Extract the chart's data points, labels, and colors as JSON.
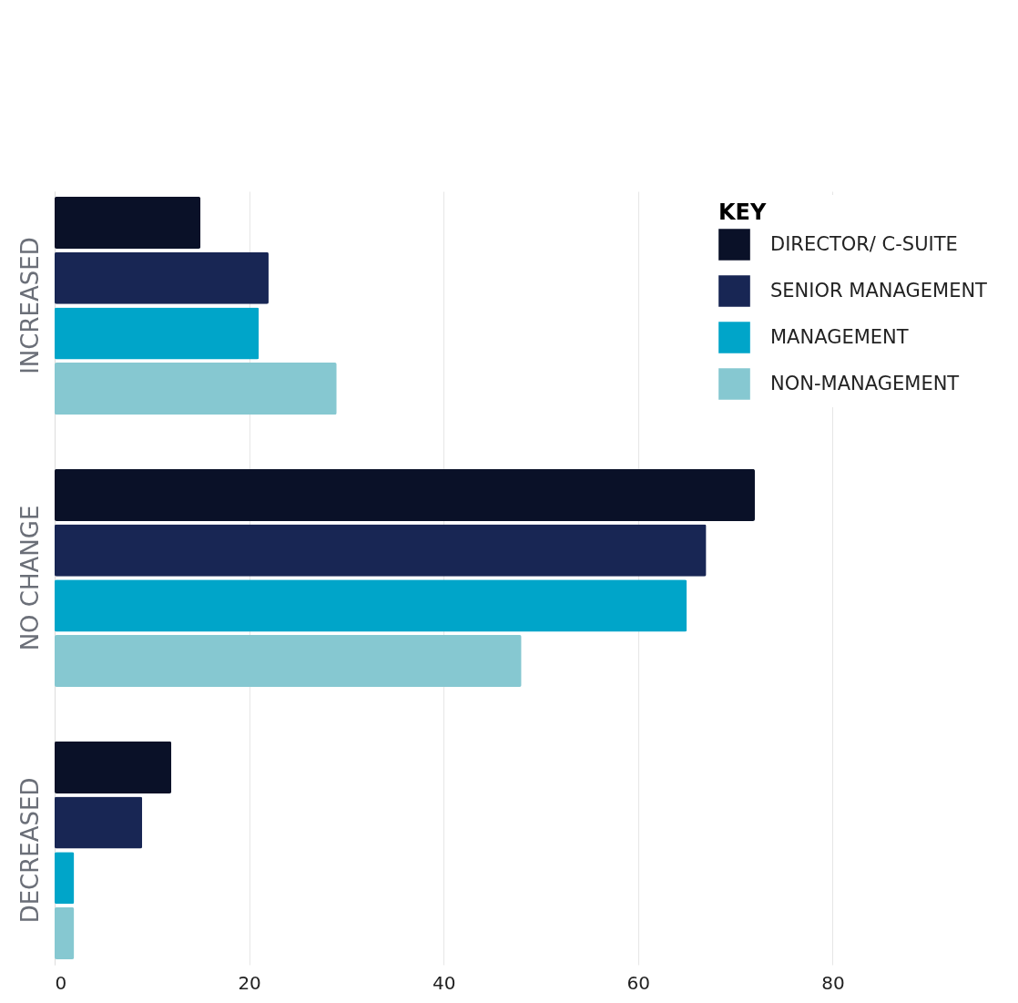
{
  "chart_data": {
    "type": "bar",
    "orientation": "horizontal",
    "legend_title": "KEY",
    "legend": "top right",
    "grid": "x",
    "categories": [
      "INCREASED",
      "NO CHANGE",
      "DECREASED"
    ],
    "series": [
      {
        "name": "DIRECTOR/ C-SUITE",
        "color": "#0a1128",
        "values": [
          15,
          72,
          12
        ]
      },
      {
        "name": "SENIOR MANAGEMENT",
        "color": "#182654",
        "values": [
          22,
          67,
          9
        ]
      },
      {
        "name": "MANAGEMENT",
        "color": "#00a5c9",
        "values": [
          21,
          65,
          2
        ]
      },
      {
        "name": "NON-MANAGEMENT",
        "color": "#86c8d1",
        "values": [
          29,
          48,
          2
        ]
      }
    ],
    "xlim": [
      0,
      97
    ],
    "xticks": [
      0,
      20,
      40,
      60,
      80
    ]
  }
}
